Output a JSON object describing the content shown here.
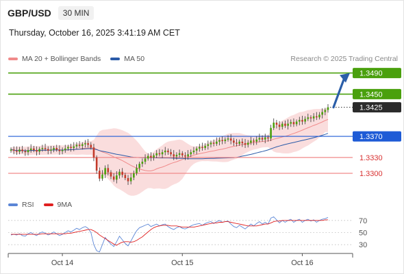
{
  "header": {
    "symbol": "GBP/USD",
    "timeframe": "30 MIN",
    "timestamp": "Thursday, October 16, 2025 3:41:19 AM CET"
  },
  "legend": {
    "items": [
      {
        "label": "MA 20 + Bollinger Bands",
        "color": "#f08a8a"
      },
      {
        "label": "MA 50",
        "color": "#2a5aa8"
      }
    ],
    "credit": "Research © 2025 Trading Central"
  },
  "rsi_legend": {
    "items": [
      {
        "label": "RSI",
        "color": "#5b86d6"
      },
      {
        "label": "9MA",
        "color": "#e02020"
      }
    ]
  },
  "colors": {
    "resistance": "#4aa00d",
    "current": "#2b2b2b",
    "pivot": "#1e5bd6",
    "support": "#f08a8a",
    "arrow": "#2b5ea8",
    "candle_up": "#4aa00d",
    "candle_down": "#c23a2a"
  },
  "chart_data": [
    {
      "type": "candlestick",
      "title": "GBP/USD",
      "timeframe": "30 MIN",
      "x_ticks": [
        "Oct 14",
        "Oct 15",
        "Oct 16"
      ],
      "ylim": [
        1.3265,
        1.3505
      ],
      "levels": [
        {
          "value": "1.3490",
          "kind": "resistance"
        },
        {
          "value": "1.3450",
          "kind": "resistance"
        },
        {
          "value": "1.3425",
          "kind": "current"
        },
        {
          "value": "1.3370",
          "kind": "pivot"
        },
        {
          "value": "1.3330",
          "kind": "support"
        },
        {
          "value": "1.3300",
          "kind": "support"
        }
      ],
      "series": [
        {
          "name": "MA 20 + Bollinger Bands"
        },
        {
          "name": "MA 50"
        }
      ],
      "close": [
        1.3345,
        1.3343,
        1.3341,
        1.3345,
        1.3342,
        1.334,
        1.3344,
        1.3347,
        1.3344,
        1.3341,
        1.3346,
        1.3348,
        1.3346,
        1.3343,
        1.3345,
        1.3348,
        1.3345,
        1.3342,
        1.3344,
        1.3347,
        1.335,
        1.3348,
        1.3351,
        1.3354,
        1.3352,
        1.3355,
        1.3357,
        1.3354,
        1.3349,
        1.333,
        1.3305,
        1.329,
        1.3298,
        1.331,
        1.3302,
        1.3294,
        1.3288,
        1.3296,
        1.3303,
        1.3297,
        1.3291,
        1.3285,
        1.3292,
        1.33,
        1.331,
        1.3318,
        1.3322,
        1.3328,
        1.3333,
        1.333,
        1.3334,
        1.3338,
        1.3336,
        1.334,
        1.3343,
        1.334,
        1.3336,
        1.3332,
        1.3335,
        1.3338,
        1.3334,
        1.3332,
        1.3336,
        1.334,
        1.3343,
        1.3347,
        1.335,
        1.3348,
        1.3352,
        1.3355,
        1.3358,
        1.3356,
        1.336,
        1.3363,
        1.3361,
        1.3364,
        1.3366,
        1.3362,
        1.3358,
        1.3356,
        1.336,
        1.3357,
        1.3354,
        1.3358,
        1.3362,
        1.336,
        1.3364,
        1.3367,
        1.3364,
        1.3368,
        1.3366,
        1.3386,
        1.3396,
        1.3392,
        1.3388,
        1.3394,
        1.339,
        1.3394,
        1.3397,
        1.3393,
        1.3398,
        1.3401,
        1.3398,
        1.3403,
        1.3406,
        1.3404,
        1.3408,
        1.3406,
        1.3411,
        1.3416,
        1.342,
        1.3425
      ],
      "rsi": {
        "ylim": [
          20,
          80
        ],
        "ticks": [
          70,
          50,
          30
        ],
        "rsi": [
          46,
          47,
          46,
          48,
          45,
          44,
          48,
          50,
          47,
          45,
          49,
          51,
          49,
          46,
          48,
          51,
          48,
          45,
          47,
          50,
          53,
          51,
          54,
          57,
          55,
          58,
          60,
          57,
          50,
          30,
          20,
          18,
          30,
          42,
          36,
          31,
          27,
          35,
          44,
          38,
          32,
          28,
          36,
          45,
          53,
          58,
          60,
          62,
          64,
          60,
          62,
          64,
          61,
          63,
          64,
          60,
          57,
          55,
          58,
          60,
          57,
          56,
          58,
          61,
          63,
          64,
          65,
          62,
          65,
          67,
          68,
          65,
          68,
          70,
          67,
          68,
          69,
          64,
          60,
          58,
          62,
          59,
          56,
          60,
          64,
          61,
          65,
          68,
          64,
          67,
          64,
          74,
          76,
          71,
          66,
          70,
          67,
          70,
          72,
          67,
          70,
          72,
          67,
          70,
          72,
          69,
          71,
          67,
          70,
          72,
          73,
          75
        ],
        "ma": [
          47,
          47,
          47,
          47,
          47,
          47,
          47,
          47,
          47,
          47,
          47,
          48,
          48,
          48,
          48,
          48,
          48,
          48,
          48,
          48,
          49,
          49,
          50,
          51,
          52,
          53,
          54,
          55,
          55,
          53,
          50,
          46,
          43,
          40,
          37,
          34,
          31,
          29,
          32,
          34,
          35,
          35,
          34,
          35,
          37,
          40,
          43,
          47,
          51,
          55,
          58,
          60,
          61,
          62,
          62,
          62,
          61,
          61,
          61,
          60,
          59,
          59,
          59,
          59,
          59,
          60,
          61,
          62,
          63,
          64,
          65,
          66,
          66,
          67,
          67,
          68,
          68,
          67,
          66,
          65,
          64,
          63,
          62,
          61,
          61,
          61,
          61,
          62,
          63,
          64,
          64,
          66,
          68,
          69,
          69,
          70,
          70,
          70,
          70,
          70,
          70,
          70,
          70,
          70,
          70,
          70,
          70,
          70,
          70,
          70,
          71,
          71
        ]
      }
    }
  ]
}
